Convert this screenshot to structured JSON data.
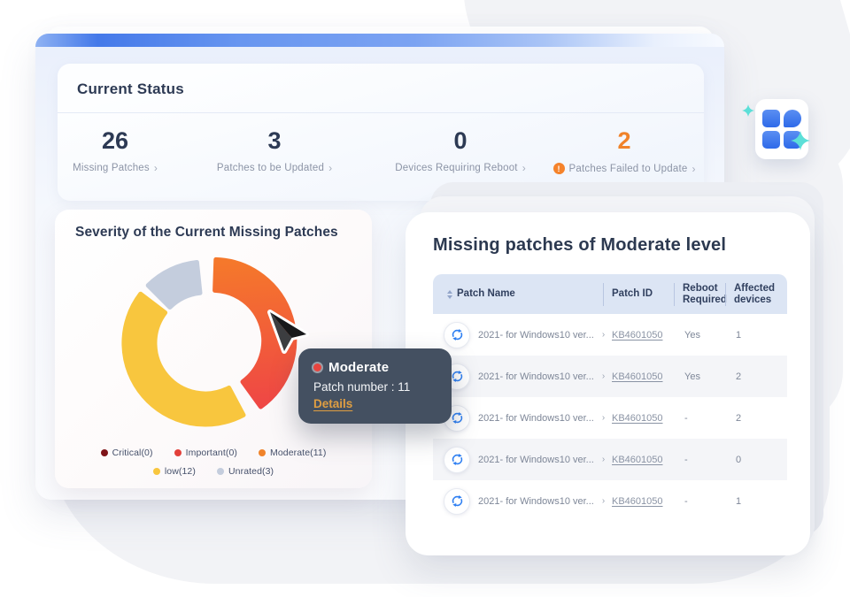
{
  "colors": {
    "accent_orange": "#F0832A",
    "brand_blue": "#4479E9",
    "navy_text": "#2D3A54",
    "muted_text": "#8C94A6",
    "table_header_bg": "#DCE5F4",
    "tooltip_bg": "#3E4A5C",
    "refresh_icon_blue": "#2E7FF2",
    "sparkle_teal": "#5CDFD8"
  },
  "current_status": {
    "title": "Current Status",
    "chevron": "›",
    "warning_glyph": "!",
    "stats": [
      {
        "value": "26",
        "label": "Missing Patches"
      },
      {
        "value": "3",
        "label": "Patches to be Updated"
      },
      {
        "value": "0",
        "label": "Devices Requiring Reboot"
      },
      {
        "value": "2",
        "label": "Patches Failed to Update"
      }
    ]
  },
  "severity_card": {
    "title": "Severity of the Current Missing Patches"
  },
  "chart_data": {
    "type": "pie",
    "subtype": "donut",
    "title": "Severity of the Current Missing Patches",
    "total": 26,
    "legend_position": "bottom",
    "start_angle_deg": 2,
    "segment_gap_deg": 8,
    "segments": [
      {
        "label": "Critical",
        "value": 0,
        "color": "#7E1418",
        "legend": "Critical(0)"
      },
      {
        "label": "Important",
        "value": 0,
        "color": "#E2403A",
        "legend": "Important(0)"
      },
      {
        "label": "Moderate",
        "value": 11,
        "color": "#F0832A",
        "legend": "Moderate(11)",
        "gradient_start": "#F5782B",
        "gradient_end": "#EE4148",
        "exploded": true
      },
      {
        "label": "low",
        "value": 12,
        "color": "#F8C63E",
        "legend": "low(12)"
      },
      {
        "label": "Unrated",
        "value": 3,
        "color": "#C4CDDD",
        "legend": "Unrated(3)"
      }
    ]
  },
  "tooltip": {
    "title": "Moderate",
    "line": "Patch number : 11",
    "link": "Details",
    "dot_color": "#E8443E"
  },
  "patch_table": {
    "title": "Missing patches of Moderate level",
    "row_chevron": "›",
    "columns": [
      "Patch Name",
      "Patch ID",
      "Reboot Required",
      "Affected devices"
    ],
    "rows": [
      {
        "name": "2021- for Windows10 ver...",
        "id": "KB4601050",
        "reboot": "Yes",
        "devices": "1"
      },
      {
        "name": "2021- for Windows10 ver...",
        "id": "KB4601050",
        "reboot": "Yes",
        "devices": "2"
      },
      {
        "name": "2021- for Windows10 ver...",
        "id": "KB4601050",
        "reboot": "-",
        "devices": "2"
      },
      {
        "name": "2021- for Windows10 ver...",
        "id": "KB4601050",
        "reboot": "-",
        "devices": "0"
      },
      {
        "name": "2021- for Windows10 ver...",
        "id": "KB4601050",
        "reboot": "-",
        "devices": "1"
      }
    ]
  }
}
